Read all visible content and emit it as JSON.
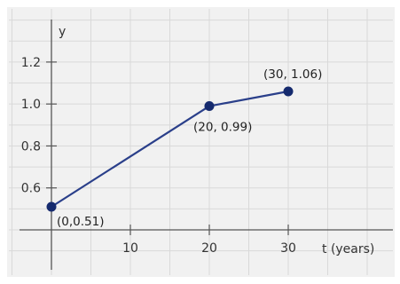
{
  "chart_data": {
    "type": "line",
    "xlabel": "t (years)",
    "ylabel": "y",
    "xlim": [
      -4,
      43
    ],
    "ylim": [
      0.35,
      1.38
    ],
    "x_ticks": [
      10,
      20,
      30
    ],
    "x_tick_labels": [
      "10",
      "20",
      "30"
    ],
    "y_ticks": [
      0.6,
      0.8,
      1.0,
      1.2
    ],
    "y_tick_labels": [
      "0.6",
      "0.8",
      "1.0",
      "1.2"
    ],
    "grid": true,
    "x_axis_at_y": 0.4,
    "series": [
      {
        "x": [
          0,
          20,
          30
        ],
        "y": [
          0.51,
          0.99,
          1.06
        ],
        "labels": [
          "(0,0.51)",
          "(20, 0.99)",
          "(30, 1.06)"
        ]
      }
    ]
  },
  "colors": {
    "background": "#ffffff",
    "plot_background": "#f1f1f1",
    "grid": "#d9d9d9",
    "axis": "#555555",
    "line": "#2a3f8a",
    "marker": "#152a6e"
  }
}
